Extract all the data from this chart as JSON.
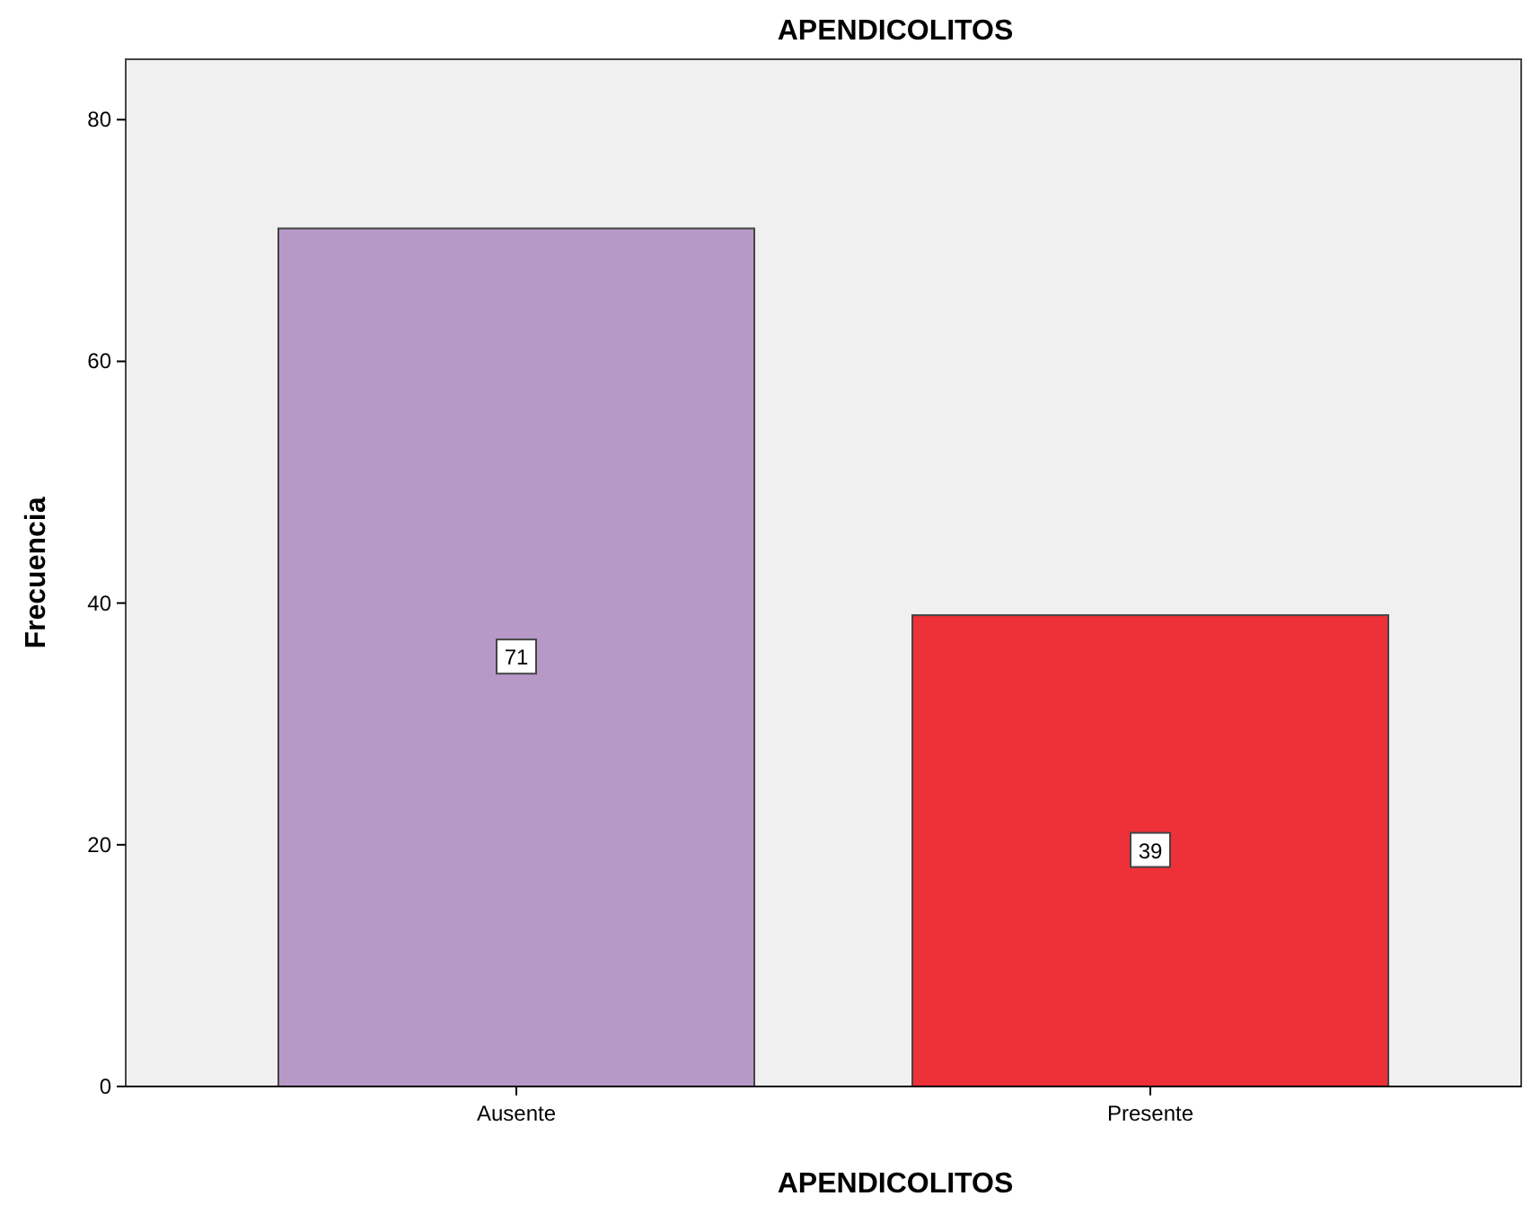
{
  "chart_data": {
    "type": "bar",
    "title": "APENDICOLITOS",
    "xlabel": "APENDICOLITOS",
    "ylabel": "Frecuencia",
    "categories": [
      "Ausente",
      "Presente"
    ],
    "values": [
      71,
      39
    ],
    "colors": [
      "#b799c8",
      "#ee3039"
    ],
    "ylim": [
      0,
      85
    ],
    "yticks": [
      0,
      20,
      40,
      60,
      80
    ],
    "data_labels": true
  }
}
